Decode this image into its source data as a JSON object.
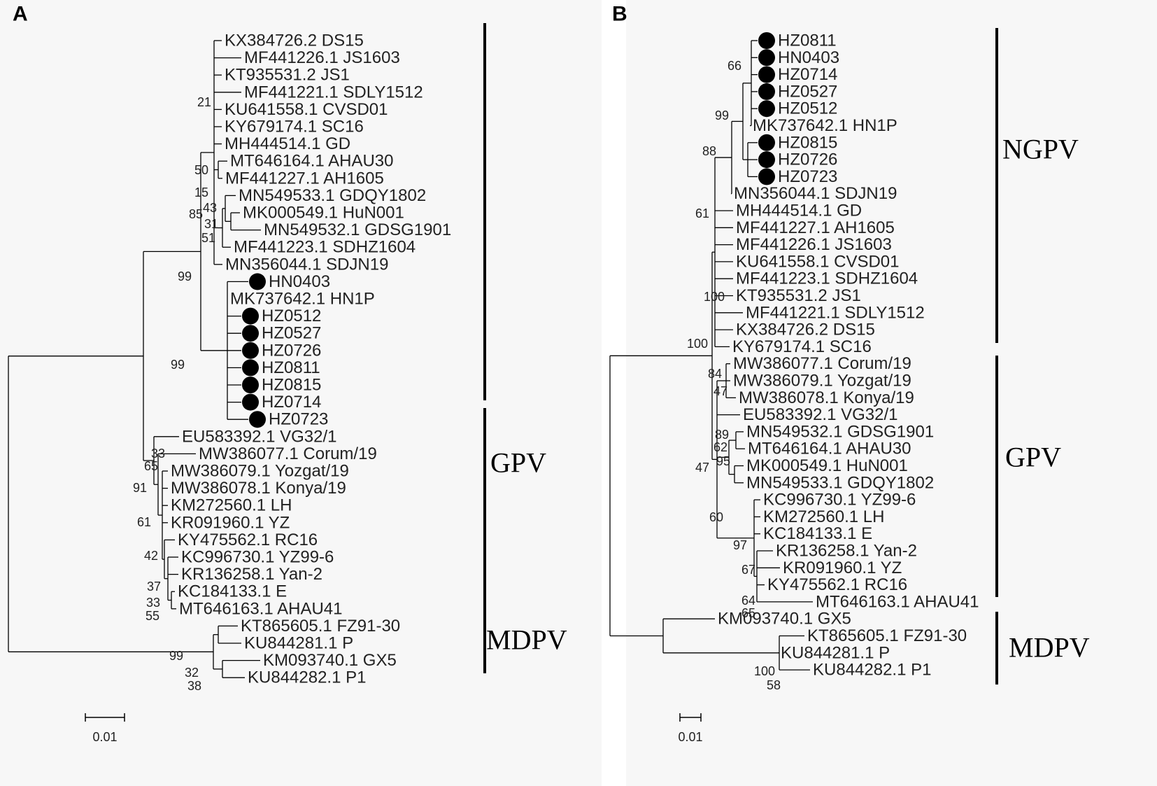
{
  "figure": {
    "panels": [
      {
        "id": "A",
        "letter": "A",
        "scale_label": "0.01",
        "leaves": [
          {
            "label": "KX384726.2 DS15",
            "marked": false
          },
          {
            "label": "MF441226.1 JS1603",
            "marked": false
          },
          {
            "label": "KT935531.2 JS1",
            "marked": false
          },
          {
            "label": "MF441221.1 SDLY1512",
            "marked": false
          },
          {
            "label": "KU641558.1 CVSD01",
            "marked": false
          },
          {
            "label": "KY679174.1 SC16",
            "marked": false
          },
          {
            "label": "MH444514.1 GD",
            "marked": false
          },
          {
            "label": "MT646164.1 AHAU30",
            "marked": false
          },
          {
            "label": "MF441227.1 AH1605",
            "marked": false
          },
          {
            "label": "MN549533.1 GDQY1802",
            "marked": false
          },
          {
            "label": "MK000549.1 HuN001",
            "marked": false
          },
          {
            "label": "MN549532.1 GDSG1901",
            "marked": false
          },
          {
            "label": "MF441223.1 SDHZ1604",
            "marked": false
          },
          {
            "label": "MN356044.1 SDJN19",
            "marked": false
          },
          {
            "label": "HN0403",
            "marked": true
          },
          {
            "label": "MK737642.1 HN1P",
            "marked": false
          },
          {
            "label": "HZ0512",
            "marked": true
          },
          {
            "label": "HZ0527",
            "marked": true
          },
          {
            "label": "HZ0726",
            "marked": true
          },
          {
            "label": "HZ0811",
            "marked": true
          },
          {
            "label": "HZ0815",
            "marked": true
          },
          {
            "label": "HZ0714",
            "marked": true
          },
          {
            "label": "HZ0723",
            "marked": true
          },
          {
            "label": "EU583392.1 VG32/1",
            "marked": false
          },
          {
            "label": "MW386077.1 Corum/19",
            "marked": false
          },
          {
            "label": "MW386079.1 Yozgat/19",
            "marked": false
          },
          {
            "label": "MW386078.1 Konya/19",
            "marked": false
          },
          {
            "label": "KM272560.1 LH",
            "marked": false
          },
          {
            "label": "KR091960.1 YZ",
            "marked": false
          },
          {
            "label": "KY475562.1 RC16",
            "marked": false
          },
          {
            "label": "KC996730.1 YZ99-6",
            "marked": false
          },
          {
            "label": "KR136258.1 Yan-2",
            "marked": false
          },
          {
            "label": "KC184133.1 E",
            "marked": false
          },
          {
            "label": "MT646163.1 AHAU41",
            "marked": false
          },
          {
            "label": "KT865605.1 FZ91-30",
            "marked": false
          },
          {
            "label": "KU844281.1 P",
            "marked": false
          },
          {
            "label": "KM093740.1 GX5",
            "marked": false
          },
          {
            "label": "KU844282.1 P1",
            "marked": false
          }
        ],
        "support_values": [
          "21",
          "50",
          "15",
          "43",
          "85",
          "31",
          "51",
          "99",
          "99",
          "33",
          "65",
          "91",
          "61",
          "42",
          "37",
          "33",
          "55",
          "99",
          "32",
          "38"
        ],
        "clades": [
          {
            "label": ""
          },
          {
            "label": "GPV"
          },
          {
            "label": "MDPV"
          }
        ]
      },
      {
        "id": "B",
        "letter": "B",
        "scale_label": "0.01",
        "leaves": [
          {
            "label": "HZ0811",
            "marked": true
          },
          {
            "label": "HN0403",
            "marked": true
          },
          {
            "label": "HZ0714",
            "marked": true
          },
          {
            "label": "HZ0527",
            "marked": true
          },
          {
            "label": "HZ0512",
            "marked": true
          },
          {
            "label": "MK737642.1 HN1P",
            "marked": false
          },
          {
            "label": "HZ0815",
            "marked": true
          },
          {
            "label": "HZ0726",
            "marked": true
          },
          {
            "label": "HZ0723",
            "marked": true
          },
          {
            "label": "MN356044.1 SDJN19",
            "marked": false
          },
          {
            "label": "MH444514.1 GD",
            "marked": false
          },
          {
            "label": "MF441227.1 AH1605",
            "marked": false
          },
          {
            "label": "MF441226.1 JS1603",
            "marked": false
          },
          {
            "label": "KU641558.1 CVSD01",
            "marked": false
          },
          {
            "label": "MF441223.1 SDHZ1604",
            "marked": false
          },
          {
            "label": "KT935531.2 JS1",
            "marked": false
          },
          {
            "label": "MF441221.1 SDLY1512",
            "marked": false
          },
          {
            "label": "KX384726.2 DS15",
            "marked": false
          },
          {
            "label": "KY679174.1 SC16",
            "marked": false
          },
          {
            "label": "MW386077.1 Corum/19",
            "marked": false
          },
          {
            "label": "MW386079.1 Yozgat/19",
            "marked": false
          },
          {
            "label": "MW386078.1 Konya/19",
            "marked": false
          },
          {
            "label": "EU583392.1 VG32/1",
            "marked": false
          },
          {
            "label": "MN549532.1 GDSG1901",
            "marked": false
          },
          {
            "label": "MT646164.1 AHAU30",
            "marked": false
          },
          {
            "label": "MK000549.1 HuN001",
            "marked": false
          },
          {
            "label": "MN549533.1 GDQY1802",
            "marked": false
          },
          {
            "label": "KC996730.1 YZ99-6",
            "marked": false
          },
          {
            "label": "KM272560.1 LH",
            "marked": false
          },
          {
            "label": "KC184133.1 E",
            "marked": false
          },
          {
            "label": "KR136258.1 Yan-2",
            "marked": false
          },
          {
            "label": "KR091960.1 YZ",
            "marked": false
          },
          {
            "label": "KY475562.1 RC16",
            "marked": false
          },
          {
            "label": "MT646163.1 AHAU41",
            "marked": false
          },
          {
            "label": "KM093740.1 GX5",
            "marked": false
          },
          {
            "label": "KT865605.1 FZ91-30",
            "marked": false
          },
          {
            "label": "KU844281.1 P",
            "marked": false
          },
          {
            "label": "KU844282.1 P1",
            "marked": false
          }
        ],
        "support_values": [
          "66",
          "99",
          "88",
          "61",
          "100",
          "100",
          "84",
          "47",
          "89",
          "62",
          "95",
          "47",
          "60",
          "97",
          "67",
          "64",
          "65",
          "100",
          "58"
        ],
        "clades": [
          {
            "label": "NGPV"
          },
          {
            "label": "GPV"
          },
          {
            "label": "MDPV"
          }
        ]
      }
    ]
  }
}
